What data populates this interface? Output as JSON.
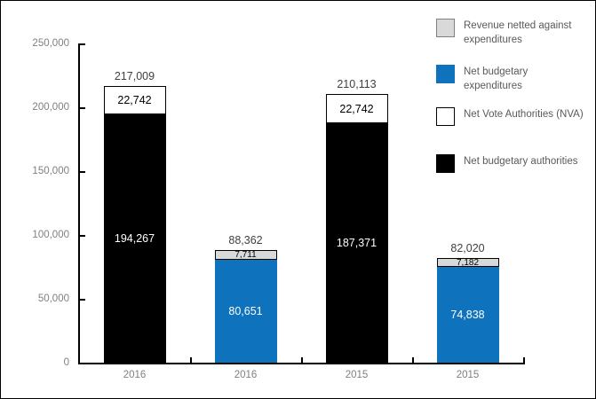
{
  "chart_data": {
    "type": "bar",
    "stacked": true,
    "categories": [
      "2016",
      "2016",
      "2015",
      "2015"
    ],
    "ylim": [
      0,
      250000
    ],
    "y_axis": {
      "tick_interval": 50000,
      "tick_labels": [
        "0",
        "50,000",
        "100,000",
        "150,000",
        "200,000",
        "250,000"
      ]
    },
    "grid": false,
    "bars": [
      {
        "category": "2016",
        "total": 217009,
        "total_label": "217,009",
        "segments": [
          {
            "legend": "Net budgetary authorities",
            "value": 194267,
            "label": "194,267",
            "fill": "#000000",
            "text_color": "#FFFFFF",
            "bordered": false
          },
          {
            "legend": "Net Vote Authorities (NVA)",
            "value": 22742,
            "label": "22,742",
            "fill": "#FFFFFF",
            "text_color": "#000000",
            "bordered": true
          }
        ]
      },
      {
        "category": "2016",
        "total": 88362,
        "total_label": "88,362",
        "segments": [
          {
            "legend": "Net budgetary expenditures",
            "value": 80651,
            "label": "80,651",
            "fill": "#0E72BC",
            "text_color": "#FFFFFF",
            "bordered": false
          },
          {
            "legend": "Revenue netted against expenditures",
            "value": 7711,
            "label": "7,711",
            "fill": "#D9D9D9",
            "text_color": "#000000",
            "bordered": true
          }
        ]
      },
      {
        "category": "2015",
        "total": 210113,
        "total_label": "210,113",
        "segments": [
          {
            "legend": "Net budgetary authorities",
            "value": 187371,
            "label": "187,371",
            "fill": "#000000",
            "text_color": "#FFFFFF",
            "bordered": false
          },
          {
            "legend": "Net Vote Authorities (NVA)",
            "value": 22742,
            "label": "22,742",
            "fill": "#FFFFFF",
            "text_color": "#000000",
            "bordered": true
          }
        ]
      },
      {
        "category": "2015",
        "total": 82020,
        "total_label": "82,020",
        "segments": [
          {
            "legend": "Net budgetary expenditures",
            "value": 74838,
            "label": "74,838",
            "fill": "#0E72BC",
            "text_color": "#FFFFFF",
            "bordered": false
          },
          {
            "legend": "Revenue netted against expenditures",
            "value": 7182,
            "label": "7,182",
            "fill": "#D9D9D9",
            "text_color": "#000000",
            "bordered": true
          }
        ]
      }
    ],
    "legend": {
      "position": "top-right",
      "items": [
        {
          "label": "Revenue netted against expenditures",
          "swatch_fill": "#D9D9D9",
          "swatch_border": "#808080"
        },
        {
          "label": "Net budgetary expenditures",
          "swatch_fill": "#0E72BC",
          "swatch_border": "#0E72BC"
        },
        {
          "label": "Net Vote Authorities (NVA)",
          "swatch_fill": "#FFFFFF",
          "swatch_border": "#000000"
        },
        {
          "label": "Net budgetary authorities",
          "swatch_fill": "#000000",
          "swatch_border": "#000000"
        }
      ]
    },
    "colors": {
      "axis": "#000000",
      "axis_label_text": "#7F7F7F",
      "total_label_text": "#404040",
      "legend_text": "#595959",
      "background": "#FFFFFF"
    }
  }
}
